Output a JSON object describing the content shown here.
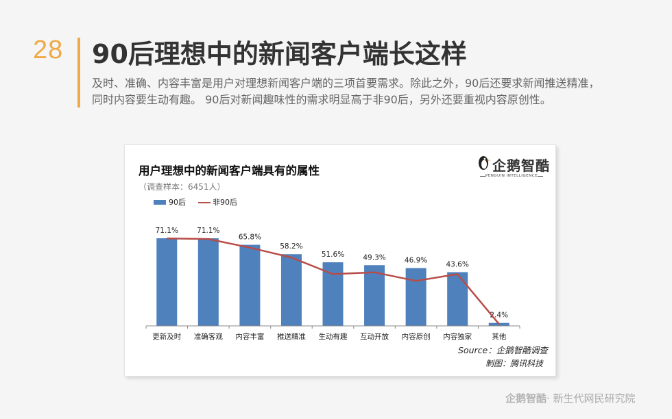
{
  "page_number": "28",
  "page_title": "90后理想中的新闻客户端长这样",
  "subtitle_lines": [
    "及时、准确、内容丰富是用户对理想新闻客户端的三项首要需求。除此之外，90后还要求新闻推送精准，",
    "同时内容要生动有趣。 90后对新闻趣味性的需求明显高于非90后，另外还要重视内容原创性。"
  ],
  "card": {
    "title": "用户理想中的新闻客户端具有的属性",
    "sample": "（调查样本：6451人）",
    "logo_text": "企鹅智酷",
    "logo_sub": "PENGUIN INTELLIGENCE",
    "source": "Source：企鹅智酷调查",
    "maker": "制图：腾讯科技"
  },
  "footer": {
    "logo": "企鹅智酷",
    "text": "· 新生代网民研究院"
  },
  "colors": {
    "accent": "#f0a945",
    "bar": "#4f81bd",
    "line": "#b84c48"
  },
  "chart_data": {
    "type": "bar",
    "title": "用户理想中的新闻客户端具有的属性",
    "subtitle": "（调查样本：6451人）",
    "categories": [
      "更新及时",
      "准确客观",
      "内容丰富",
      "推送精准",
      "生动有趣",
      "互动开放",
      "内容原创",
      "内容独家",
      "其他"
    ],
    "series": [
      {
        "name": "90后",
        "type": "bar",
        "values": [
          71.1,
          71.1,
          65.8,
          58.2,
          51.6,
          49.3,
          46.9,
          43.6,
          2.4
        ],
        "labels": [
          "71.1%",
          "71.1%",
          "65.8%",
          "58.2%",
          "51.6%",
          "49.3%",
          "46.9%",
          "43.6%",
          "2.4%"
        ]
      },
      {
        "name": "非90后",
        "type": "line",
        "values": [
          71.0,
          70.5,
          63.5,
          55.5,
          42.0,
          43.5,
          36.5,
          42.0,
          1.5
        ]
      }
    ],
    "legend": "top-left",
    "grid": false,
    "ylim": [
      0,
      85
    ]
  }
}
